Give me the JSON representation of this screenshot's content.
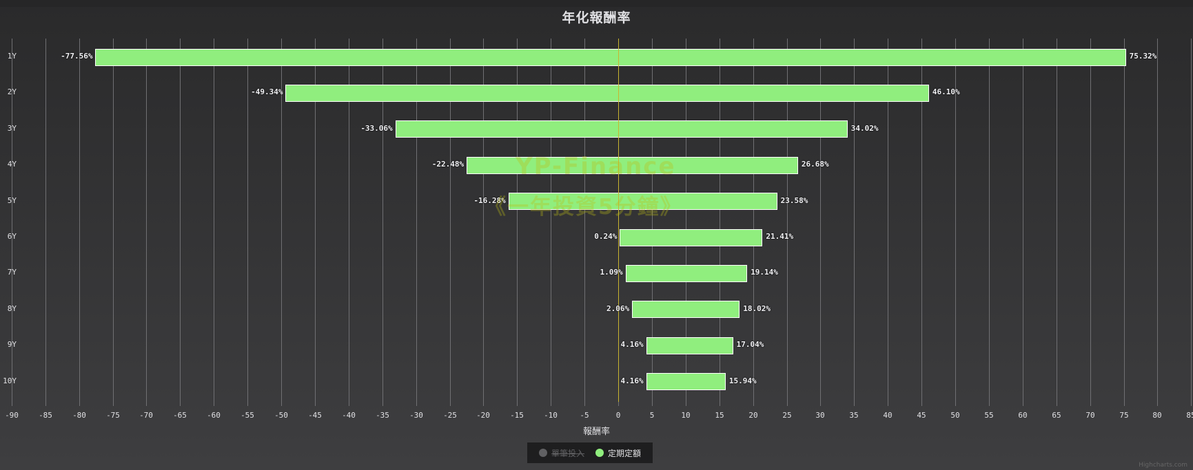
{
  "title": "年化報酬率",
  "x_axis_title": "報酬率",
  "watermark": {
    "line1": "YP-Finance",
    "line2": "《一年投資5分鐘》"
  },
  "legend": [
    {
      "label": "單筆投入",
      "color": "#606063",
      "visible": false
    },
    {
      "label": "定期定額",
      "color": "#90ee7e",
      "visible": true
    }
  ],
  "credit": "Highcharts.com",
  "colors": {
    "bar": "#90ee7e",
    "bar_border": "#ffffff",
    "zero_line": "#c9b530",
    "grid": "#707073",
    "background_top": "#2a2a2b",
    "background_bottom": "#3e3e40"
  },
  "chart_data": {
    "type": "bar",
    "subtype": "columnrange-horizontal",
    "title": "年化報酬率",
    "xlabel": "報酬率",
    "ylabel": "",
    "categories": [
      "1Y",
      "2Y",
      "3Y",
      "4Y",
      "5Y",
      "6Y",
      "7Y",
      "8Y",
      "9Y",
      "10Y"
    ],
    "series": [
      {
        "name": "定期定額",
        "visible": true,
        "low": [
          -77.56,
          -49.34,
          -33.06,
          -22.48,
          -16.28,
          0.24,
          1.09,
          2.06,
          4.16,
          4.16
        ],
        "high": [
          75.32,
          46.1,
          34.02,
          26.68,
          23.58,
          21.41,
          19.14,
          18.02,
          17.04,
          15.94
        ],
        "low_labels": [
          "-77.56%",
          "-49.34%",
          "-33.06%",
          "-22.48%",
          "-16.28%",
          "0.24%",
          "1.09%",
          "2.06%",
          "4.16%",
          "4.16%"
        ],
        "high_labels": [
          "75.32%",
          "46.10%",
          "34.02%",
          "26.68%",
          "23.58%",
          "21.41%",
          "19.14%",
          "18.02%",
          "17.04%",
          "15.94%"
        ]
      },
      {
        "name": "單筆投入",
        "visible": false
      }
    ],
    "x_ticks": [
      -90,
      -85,
      -80,
      -75,
      -70,
      -65,
      -60,
      -55,
      -50,
      -45,
      -40,
      -35,
      -30,
      -25,
      -20,
      -15,
      -10,
      -5,
      0,
      5,
      10,
      15,
      20,
      25,
      30,
      35,
      40,
      45,
      50,
      55,
      60,
      65,
      70,
      75,
      80,
      85
    ],
    "xlim": [
      -90,
      85
    ],
    "grid": true,
    "legend_position": "bottom-center"
  }
}
